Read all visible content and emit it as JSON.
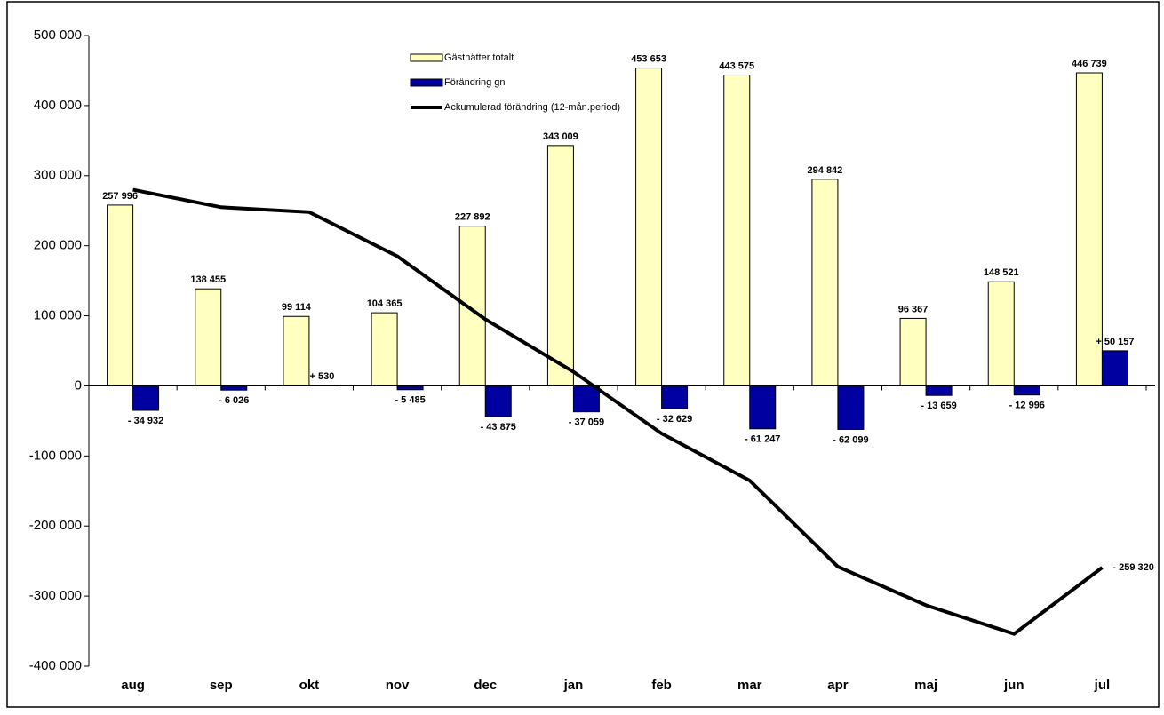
{
  "chart_data": {
    "type": "bar-line",
    "categories": [
      "aug",
      "sep",
      "okt",
      "nov",
      "dec",
      "jan",
      "feb",
      "mar",
      "apr",
      "maj",
      "jun",
      "jul"
    ],
    "series": [
      {
        "name": "Gästnätter totalt",
        "type": "bar",
        "color": "#ffffc0",
        "values": [
          257996,
          138455,
          99114,
          104365,
          227892,
          343009,
          453653,
          443575,
          294842,
          96367,
          148521,
          446739
        ],
        "value_labels": [
          "257 996",
          "138 455",
          "99 114",
          "104 365",
          "227 892",
          "343 009",
          "453 653",
          "443 575",
          "294 842",
          "96 367",
          "148 521",
          "446 739"
        ]
      },
      {
        "name": "Förändring gn",
        "type": "bar",
        "color": "#0000a0",
        "values": [
          -34932,
          -6026,
          530,
          -5485,
          -43875,
          -37059,
          -32629,
          -61247,
          -62099,
          -13659,
          -12996,
          50157
        ],
        "value_labels": [
          "- 34 932",
          "- 6 026",
          "+ 530",
          "- 5 485",
          "- 43 875",
          "- 37 059",
          "- 32 629",
          "- 61 247",
          "- 62 099",
          "- 13 659",
          "- 12 996",
          "+ 50 157"
        ]
      },
      {
        "name": "Ackumulerad förändring (12-mån.period)",
        "type": "line",
        "color": "#000000",
        "values": [
          280000,
          255000,
          248000,
          185000,
          95000,
          20000,
          -68000,
          -135000,
          -258000,
          -313000,
          -354000,
          -259320
        ],
        "value_labels": [
          null,
          null,
          null,
          null,
          null,
          null,
          null,
          null,
          null,
          null,
          null,
          "- 259 320"
        ]
      }
    ],
    "ylim": [
      -400000,
      500000
    ],
    "yticks": [
      {
        "value": -400000,
        "label": "-400 000"
      },
      {
        "value": -300000,
        "label": "-300 000"
      },
      {
        "value": -200000,
        "label": "-200 000"
      },
      {
        "value": -100000,
        "label": "-100 000"
      },
      0,
      {
        "value": 100000,
        "label": "100 000"
      },
      {
        "value": 200000,
        "label": "200 000"
      },
      {
        "value": 300000,
        "label": "300 000"
      },
      {
        "value": 400000,
        "label": "400 000"
      },
      {
        "value": 500000,
        "label": "500 000"
      }
    ]
  }
}
